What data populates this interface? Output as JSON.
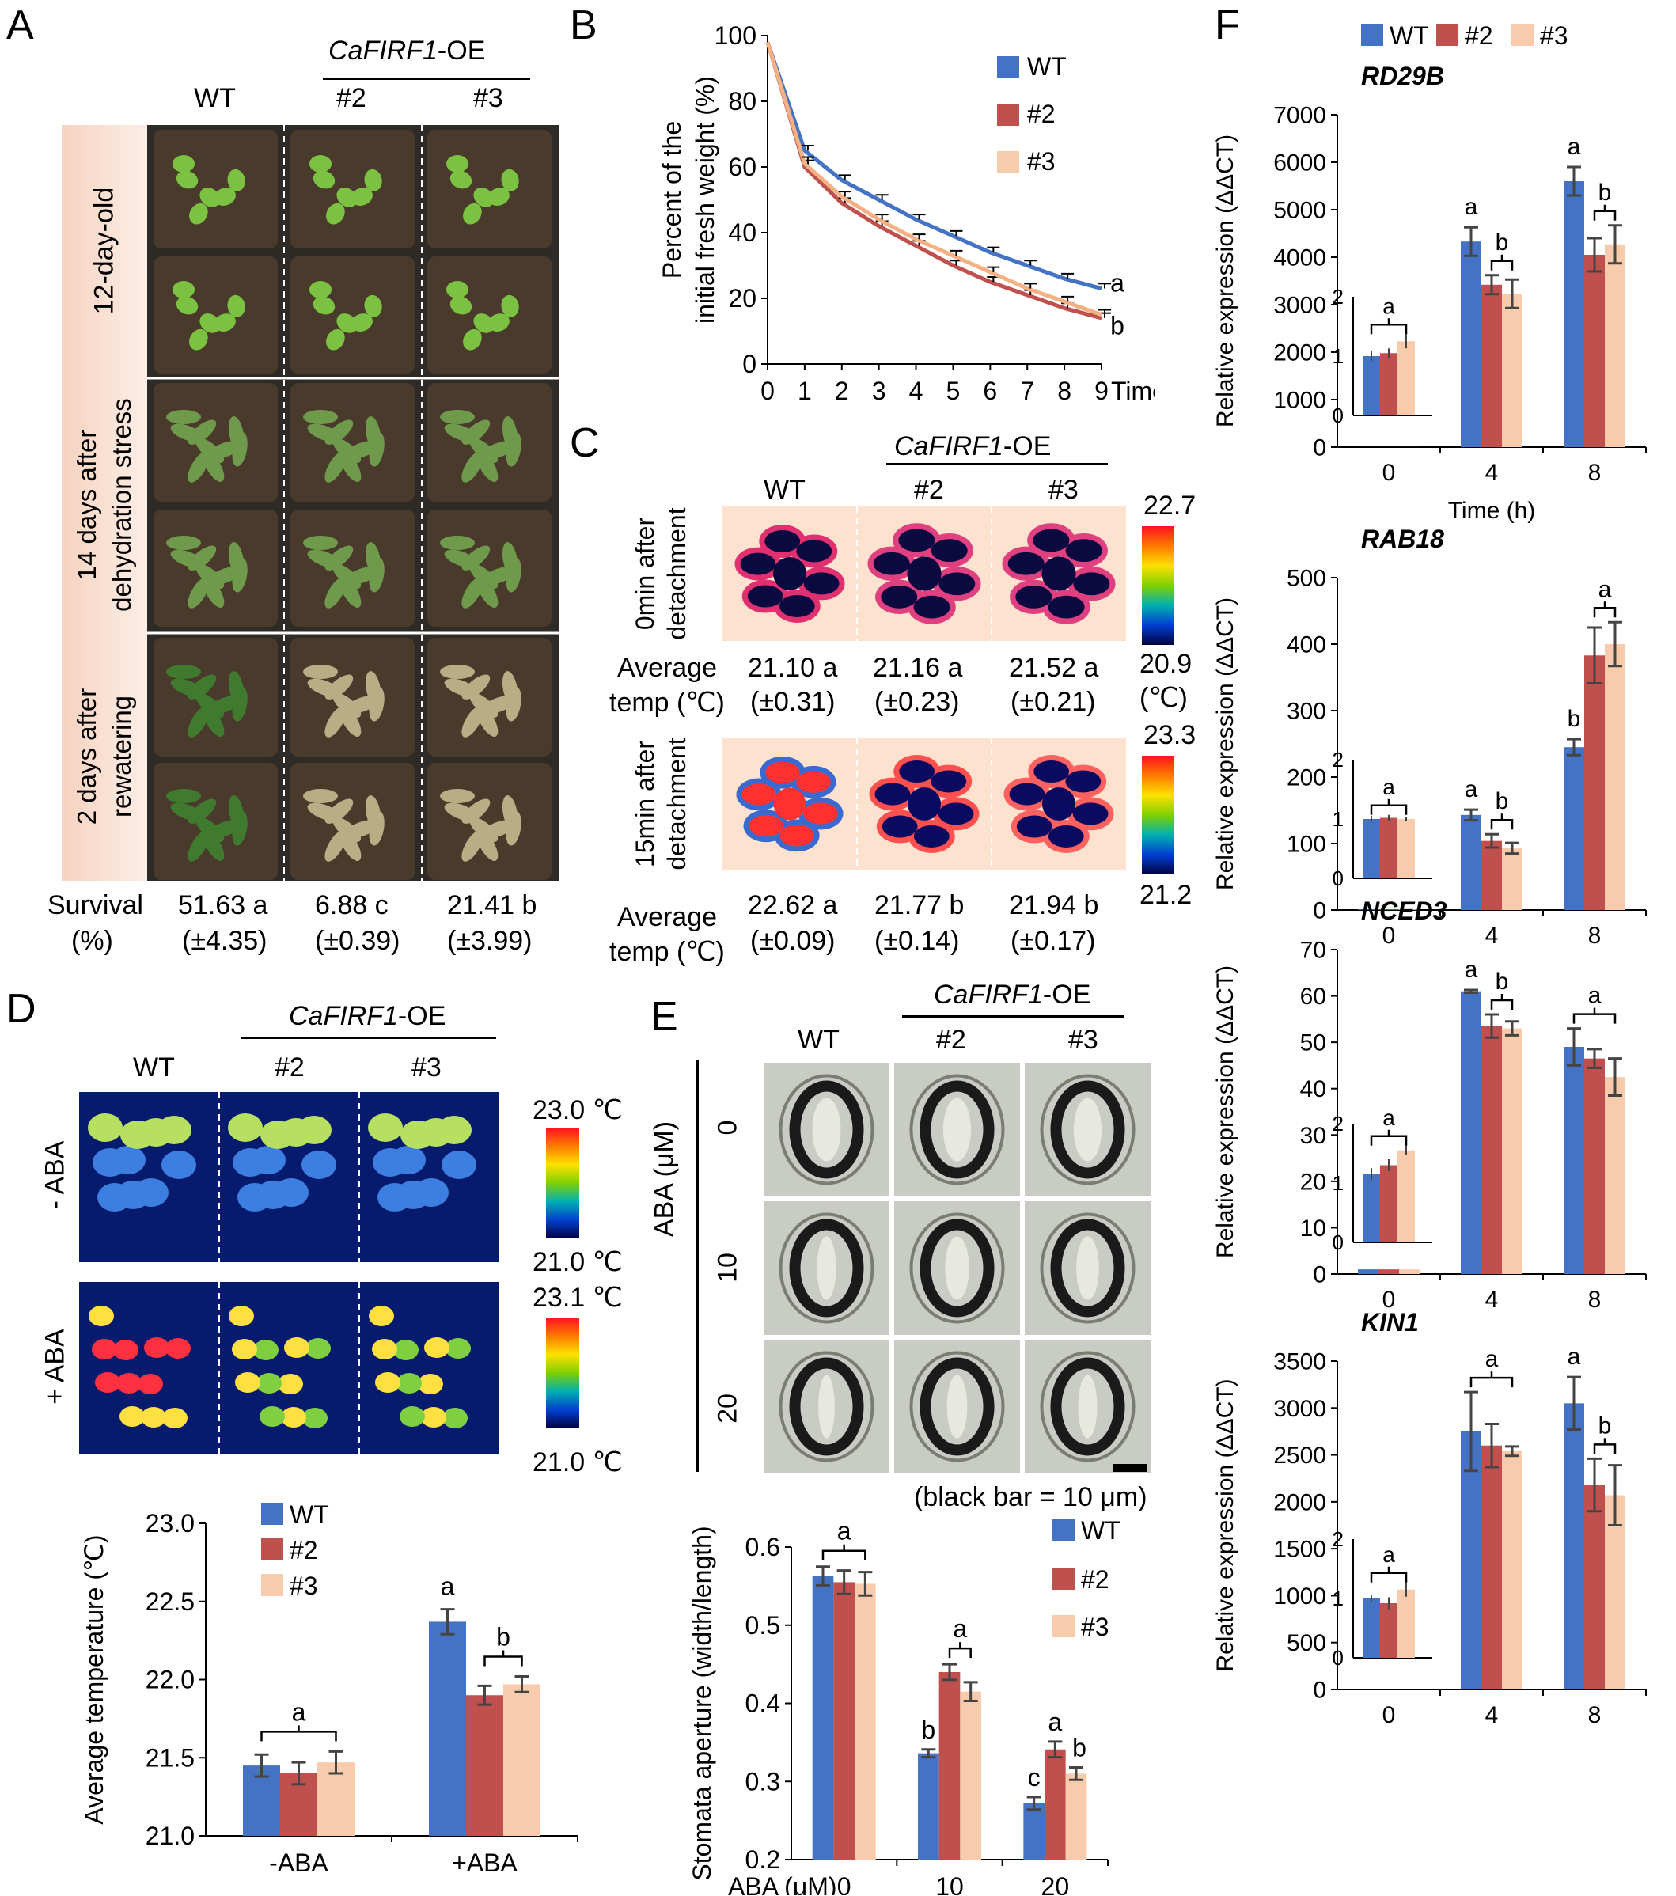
{
  "panels": {
    "A": "A",
    "B": "B",
    "C": "C",
    "D": "D",
    "E": "E",
    "F": "F"
  },
  "genotypes": {
    "wt": "WT",
    "l2": "#2",
    "l3": "#3",
    "oe_gene": "CaFIRF1",
    "oe_suffix": "-OE"
  },
  "colors": {
    "wt": "#4472C4",
    "l2": "#C0504D",
    "l3": "#F8CBAD",
    "err": "#444444"
  },
  "panelA": {
    "rows": [
      "12-day-old",
      "14 days after dehydration stress",
      "2 days after rewatering"
    ],
    "survival_label": "Survival",
    "survival_unit": "(%)",
    "survival": [
      {
        "value": "51.63 a",
        "sd": "(±4.35)"
      },
      {
        "value": "6.88 c",
        "sd": "(±0.39)"
      },
      {
        "value": "21.41 b",
        "sd": "(±3.99)"
      }
    ]
  },
  "panelC": {
    "rows": [
      {
        "label": "0min after detachment",
        "max": "22.7",
        "min": "20.9",
        "min_unit": "(℃)",
        "temps": [
          {
            "v": "21.10 a",
            "sd": "(±0.31)"
          },
          {
            "v": "21.16 a",
            "sd": "(±0.23)"
          },
          {
            "v": "21.52 a",
            "sd": "(±0.21)"
          }
        ]
      },
      {
        "label": "15min after detachment",
        "max": "23.3",
        "min": "21.2",
        "min_unit": "",
        "temps": [
          {
            "v": "22.62 a",
            "sd": "(±0.09)"
          },
          {
            "v": "21.77 b",
            "sd": "(±0.14)"
          },
          {
            "v": "21.94 b",
            "sd": "(±0.17)"
          }
        ]
      }
    ],
    "avg_label_1": "Average",
    "avg_label_2": "temp (℃)"
  },
  "panelD": {
    "rows": [
      {
        "label": "- ABA",
        "max": "23.0 ℃",
        "min": "21.0 ℃"
      },
      {
        "label": "+ ABA",
        "max": "23.1 ℃",
        "min": "21.0 ℃"
      }
    ]
  },
  "panelE": {
    "aba_axis": "ABA (μM)",
    "doses": [
      "0",
      "10",
      "20"
    ],
    "scale_note": "(black bar = 10 μm)"
  },
  "chart_data": [
    {
      "id": "B",
      "type": "line",
      "xlabel": "Time (h)",
      "ylabel": "Percent of the initial fresh weight (%)",
      "ylim": [
        0,
        100
      ],
      "yticks": [
        0,
        20,
        40,
        60,
        80,
        100
      ],
      "x": [
        0,
        1,
        2,
        3,
        4,
        5,
        6,
        7,
        8,
        9
      ],
      "series": [
        {
          "name": "WT",
          "values": [
            98,
            65,
            56,
            50,
            44,
            39,
            34,
            30,
            26,
            23
          ],
          "err": [
            1,
            1.5,
            1.5,
            1.5,
            1.5,
            1.5,
            1.5,
            1.5,
            1.5,
            1.5
          ]
        },
        {
          "name": "#2",
          "values": [
            98,
            60,
            49,
            42,
            36,
            30,
            25,
            21,
            17,
            14
          ],
          "err": [
            1,
            2,
            1.5,
            1.5,
            1.5,
            1.5,
            1.5,
            1.5,
            1.5,
            1.5
          ]
        },
        {
          "name": "#3",
          "values": [
            98,
            61,
            51,
            44,
            38,
            33,
            28,
            23,
            19,
            15
          ],
          "err": [
            1,
            2,
            1.5,
            1.5,
            1.5,
            1.5,
            1.5,
            1.5,
            1.5,
            1.5
          ]
        }
      ],
      "annotations": [
        "a",
        "b"
      ]
    },
    {
      "id": "D",
      "type": "bar",
      "ylabel": "Average temperature (℃)",
      "ylim": [
        21.0,
        23.0
      ],
      "yticks": [
        "21.0",
        "21.5",
        "22.0",
        "22.5",
        "23.0"
      ],
      "categories": [
        "-ABA",
        "+ABA"
      ],
      "series": [
        {
          "name": "WT",
          "values": [
            21.45,
            22.37
          ],
          "err": [
            0.07,
            0.08
          ]
        },
        {
          "name": "#2",
          "values": [
            21.4,
            21.9
          ],
          "err": [
            0.07,
            0.06
          ]
        },
        {
          "name": "#3",
          "values": [
            21.47,
            21.97
          ],
          "err": [
            0.07,
            0.05
          ]
        }
      ],
      "letters": [
        "a",
        "a",
        "b"
      ]
    },
    {
      "id": "E",
      "type": "bar",
      "ylabel": "Stomata aperture (width/length)",
      "xlabel": "ABA (μM)",
      "ylim": [
        0.2,
        0.6
      ],
      "yticks": [
        "0.2",
        "0.3",
        "0.4",
        "0.5",
        "0.6"
      ],
      "categories": [
        "0",
        "10",
        "20"
      ],
      "series": [
        {
          "name": "WT",
          "values": [
            0.563,
            0.336,
            0.272
          ],
          "err": [
            0.012,
            0.005,
            0.008
          ]
        },
        {
          "name": "#2",
          "values": [
            0.555,
            0.44,
            0.341
          ],
          "err": [
            0.015,
            0.01,
            0.01
          ]
        },
        {
          "name": "#3",
          "values": [
            0.553,
            0.415,
            0.31
          ],
          "err": [
            0.015,
            0.012,
            0.008
          ]
        }
      ],
      "letters": [
        "a",
        "b",
        "a",
        "c",
        "a",
        "b"
      ]
    },
    {
      "id": "F1",
      "type": "bar",
      "gene": "RD29B",
      "ylabel": "Relative expression (ΔΔCT)",
      "xlabel": "Time (h)",
      "ylim": [
        0,
        7000
      ],
      "yticks": [
        "0",
        "1000",
        "2000",
        "3000",
        "4000",
        "5000",
        "6000",
        "7000"
      ],
      "categories": [
        "0",
        "4",
        "8"
      ],
      "series": [
        {
          "name": "WT",
          "values": [
            1,
            4330,
            5600
          ],
          "err": [
            0,
            300,
            300
          ]
        },
        {
          "name": "#2",
          "values": [
            1,
            3420,
            4050
          ],
          "err": [
            0,
            200,
            350
          ]
        },
        {
          "name": "#3",
          "values": [
            1,
            3230,
            4270
          ],
          "err": [
            0,
            300,
            400
          ]
        }
      ],
      "inset": {
        "values": [
          1.0,
          1.05,
          1.25
        ],
        "err": [
          0.08,
          0.08,
          0.12
        ],
        "yticks": [
          "0",
          "1",
          "2"
        ]
      },
      "letters": [
        "a",
        "a",
        "b",
        "a",
        "b"
      ]
    },
    {
      "id": "F2",
      "type": "bar",
      "gene": "RAB18",
      "ylabel": "Relative expression (ΔΔCT)",
      "ylim": [
        0,
        500
      ],
      "yticks": [
        "0",
        "100",
        "200",
        "300",
        "400",
        "500"
      ],
      "categories": [
        "0",
        "4",
        "8"
      ],
      "series": [
        {
          "name": "WT",
          "values": [
            1,
            143,
            245
          ],
          "err": [
            0,
            8,
            12
          ]
        },
        {
          "name": "#2",
          "values": [
            1,
            104,
            383
          ],
          "err": [
            0,
            10,
            42
          ]
        },
        {
          "name": "#3",
          "values": [
            1,
            93,
            400
          ],
          "err": [
            0,
            8,
            33
          ]
        }
      ],
      "inset": {
        "values": [
          1.0,
          1.02,
          1.0
        ],
        "err": [
          0.05,
          0.05,
          0.04
        ],
        "yticks": [
          "0",
          "1",
          "2"
        ]
      },
      "letters": [
        "a",
        "a",
        "b",
        "b",
        "a"
      ]
    },
    {
      "id": "F3",
      "type": "bar",
      "gene": "NCED3",
      "ylabel": "Relative expression (ΔΔCT)",
      "ylim": [
        0,
        70
      ],
      "yticks": [
        "0",
        "10",
        "20",
        "30",
        "40",
        "50",
        "60",
        "70"
      ],
      "categories": [
        "0",
        "4",
        "8"
      ],
      "series": [
        {
          "name": "WT",
          "values": [
            1,
            61,
            49
          ],
          "err": [
            0,
            0.3,
            4
          ]
        },
        {
          "name": "#2",
          "values": [
            1,
            53.5,
            46.5
          ],
          "err": [
            0,
            2.5,
            2
          ]
        },
        {
          "name": "#3",
          "values": [
            1,
            53,
            42.5
          ],
          "err": [
            0,
            1.5,
            4
          ]
        }
      ],
      "inset": {
        "values": [
          1.15,
          1.3,
          1.55
        ],
        "err": [
          0.1,
          0.1,
          0.08
        ],
        "yticks": [
          "0",
          "1",
          "2"
        ]
      },
      "letters": [
        "a",
        "a",
        "b",
        "a"
      ]
    },
    {
      "id": "F4",
      "type": "bar",
      "gene": "KIN1",
      "ylabel": "Relative expression (ΔΔCT)",
      "ylim": [
        0,
        3500
      ],
      "yticks": [
        "0",
        "500",
        "1000",
        "1500",
        "2000",
        "2500",
        "3000",
        "3500"
      ],
      "categories": [
        "0",
        "4",
        "8"
      ],
      "series": [
        {
          "name": "WT",
          "values": [
            1,
            2750,
            3050
          ],
          "err": [
            0,
            420,
            280
          ]
        },
        {
          "name": "#2",
          "values": [
            1,
            2600,
            2180
          ],
          "err": [
            0,
            230,
            280
          ]
        },
        {
          "name": "#3",
          "values": [
            1,
            2540,
            2070
          ],
          "err": [
            0,
            50,
            320
          ]
        }
      ],
      "inset": {
        "values": [
          1.0,
          0.92,
          1.15
        ],
        "err": [
          0.05,
          0.1,
          0.12
        ],
        "yticks": [
          "0",
          "1",
          "2"
        ]
      },
      "letters": [
        "a",
        "a",
        "a",
        "b"
      ]
    }
  ]
}
